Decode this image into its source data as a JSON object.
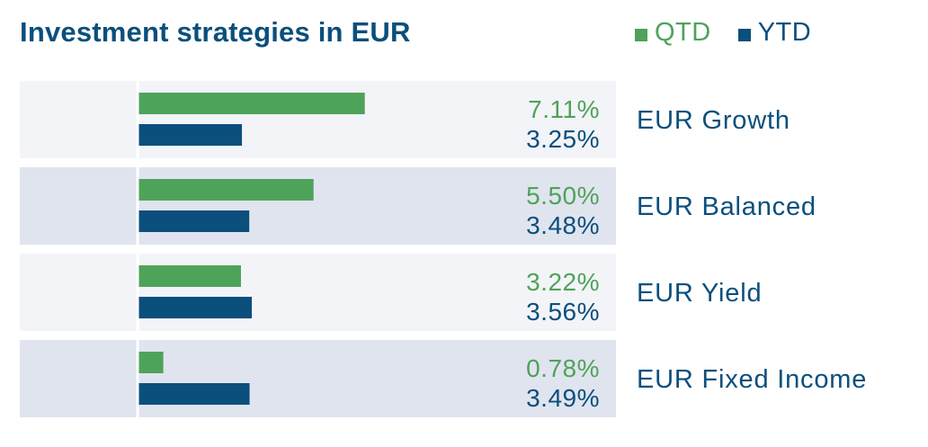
{
  "chart_data": {
    "type": "bar",
    "orientation": "horizontal",
    "title": "Investment strategies in EUR",
    "categories": [
      "EUR Growth",
      "EUR Balanced",
      "EUR Yield",
      "EUR Fixed Income"
    ],
    "series": [
      {
        "name": "QTD",
        "values": [
          7.11,
          5.5,
          3.22,
          0.78
        ],
        "labels": [
          "7.11%",
          "5.50%",
          "3.22%",
          "0.78%"
        ],
        "color": "#4ea35a"
      },
      {
        "name": "YTD",
        "values": [
          3.25,
          3.48,
          3.56,
          3.49
        ],
        "labels": [
          "3.25%",
          "3.48%",
          "3.56%",
          "3.49%"
        ],
        "color": "#0b4f7c"
      }
    ],
    "legend_position": "top-right",
    "row_shading": [
      "#f3f4f8",
      "#e0e4ef"
    ],
    "category_label_color": "#0b4f7c"
  }
}
